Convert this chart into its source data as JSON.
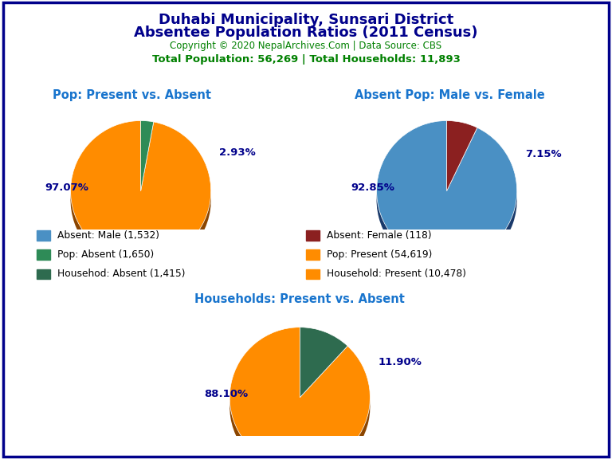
{
  "title_line1": "Duhabi Municipality, Sunsari District",
  "title_line2": "Absentee Population Ratios (2011 Census)",
  "copyright": "Copyright © 2020 NepalArchives.Com | Data Source: CBS",
  "stats": "Total Population: 56,269 | Total Households: 11,893",
  "title_color": "#00008B",
  "copyright_color": "#008000",
  "stats_color": "#008000",
  "subtitle_color": "#1874CD",
  "pie1_title": "Pop: Present vs. Absent",
  "pie1_values": [
    97.07,
    2.93
  ],
  "pie1_colors": [
    "#FF8C00",
    "#2E8B57"
  ],
  "pie1_shadow_colors": [
    "#8B4500",
    "#1A5C30"
  ],
  "pie1_labels": [
    "97.07%",
    "2.93%"
  ],
  "pie2_title": "Absent Pop: Male vs. Female",
  "pie2_values": [
    92.85,
    7.15
  ],
  "pie2_colors": [
    "#4A90C4",
    "#8B2020"
  ],
  "pie2_shadow_colors": [
    "#1A3A6B",
    "#5A0A0A"
  ],
  "pie2_labels": [
    "92.85%",
    "7.15%"
  ],
  "pie3_title": "Households: Present vs. Absent",
  "pie3_values": [
    88.1,
    11.9
  ],
  "pie3_colors": [
    "#FF8C00",
    "#2E6B4F"
  ],
  "pie3_shadow_colors": [
    "#8B4500",
    "#1A4030"
  ],
  "pie3_labels": [
    "88.10%",
    "11.90%"
  ],
  "legend_items": [
    {
      "label": "Absent: Male (1,532)",
      "color": "#4A90C4"
    },
    {
      "label": "Absent: Female (118)",
      "color": "#8B2020"
    },
    {
      "label": "Pop: Absent (1,650)",
      "color": "#2E8B57"
    },
    {
      "label": "Pop: Present (54,619)",
      "color": "#FF8C00"
    },
    {
      "label": "Househod: Absent (1,415)",
      "color": "#2E6B4F"
    },
    {
      "label": "Household: Present (10,478)",
      "color": "#FF8C00"
    }
  ],
  "label_color": "#00008B",
  "bg_color": "#FFFFFF",
  "border_color": "#00008B"
}
